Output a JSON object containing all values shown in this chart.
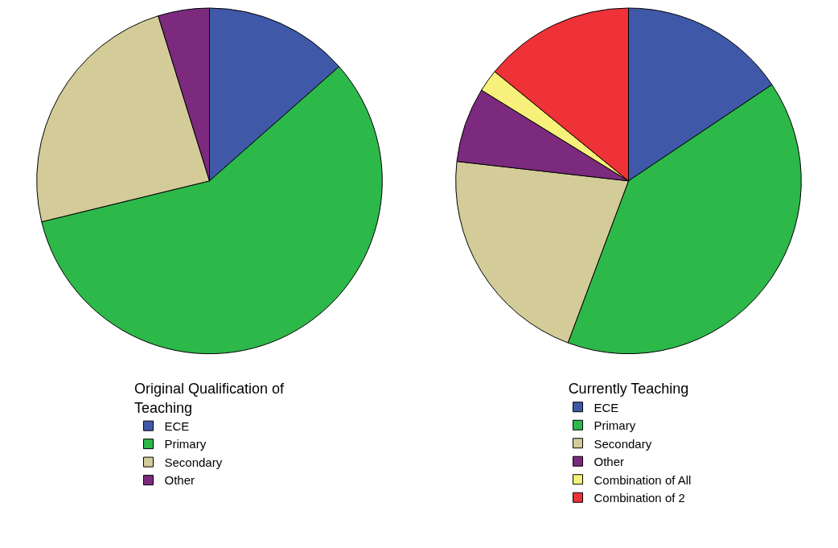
{
  "chart_data": [
    {
      "type": "pie",
      "legend_title": "Original Qualification of Teaching",
      "legend": "bottom",
      "categories": [
        "ECE",
        "Primary",
        "Secondary",
        "Other"
      ],
      "values": [
        13.5,
        57.7,
        24,
        4.8
      ],
      "colors": [
        "#3f59a8",
        "#2db84a",
        "#d3cc98",
        "#7b2a7e"
      ]
    },
    {
      "type": "pie",
      "legend_title": "Currently Teaching",
      "legend": "bottom",
      "categories": [
        "ECE",
        "Primary",
        "Secondary",
        "Other",
        "Combination of All",
        "Combination of 2"
      ],
      "values": [
        15.6,
        40.1,
        21.1,
        7,
        2.1,
        14.1
      ],
      "colors": [
        "#3f59a8",
        "#2db84a",
        "#d3cc98",
        "#7b2a7e",
        "#f7f07a",
        "#ee3237"
      ]
    }
  ]
}
